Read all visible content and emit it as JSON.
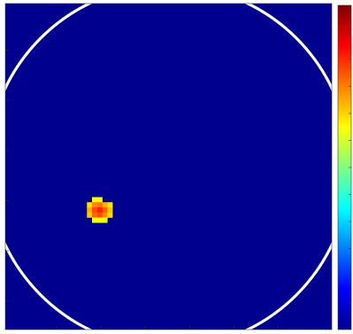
{
  "chart_data": {
    "type": "heatmap",
    "title": "",
    "xlabel": "",
    "ylabel": "",
    "grid_size": [
      64,
      64
    ],
    "background_value": 0.0,
    "hotspot": {
      "cells": [
        {
          "col": 17,
          "row": 38,
          "value": 0.63
        },
        {
          "col": 18,
          "row": 38,
          "value": 0.63
        },
        {
          "col": 16,
          "row": 39,
          "value": 0.66
        },
        {
          "col": 17,
          "row": 39,
          "value": 0.74
        },
        {
          "col": 18,
          "row": 39,
          "value": 0.76
        },
        {
          "col": 19,
          "row": 39,
          "value": 0.7
        },
        {
          "col": 20,
          "row": 39,
          "value": 0.65
        },
        {
          "col": 16,
          "row": 40,
          "value": 0.7
        },
        {
          "col": 17,
          "row": 40,
          "value": 0.8
        },
        {
          "col": 18,
          "row": 40,
          "value": 0.84
        },
        {
          "col": 19,
          "row": 40,
          "value": 0.78
        },
        {
          "col": 20,
          "row": 40,
          "value": 0.68
        },
        {
          "col": 16,
          "row": 41,
          "value": 0.68
        },
        {
          "col": 17,
          "row": 41,
          "value": 0.77
        },
        {
          "col": 18,
          "row": 41,
          "value": 0.8
        },
        {
          "col": 19,
          "row": 41,
          "value": 0.74
        },
        {
          "col": 20,
          "row": 41,
          "value": 0.66
        },
        {
          "col": 17,
          "row": 42,
          "value": 0.62
        },
        {
          "col": 18,
          "row": 42,
          "value": 0.62
        },
        {
          "col": 19,
          "row": 42,
          "value": 0.6
        }
      ]
    },
    "boundary_circle": {
      "center_col": 32,
      "center_row": 32,
      "radius": 35.5,
      "color": "#ffffff"
    },
    "colormap": "jet",
    "value_range": [
      0,
      1
    ],
    "background_color": "#00008f",
    "colorbar": {
      "position": "right",
      "tick_count": 12,
      "tick_labels": []
    },
    "x_tick_count": 6,
    "y_tick_count": 6,
    "x_tick_labels": [],
    "y_tick_labels": []
  }
}
